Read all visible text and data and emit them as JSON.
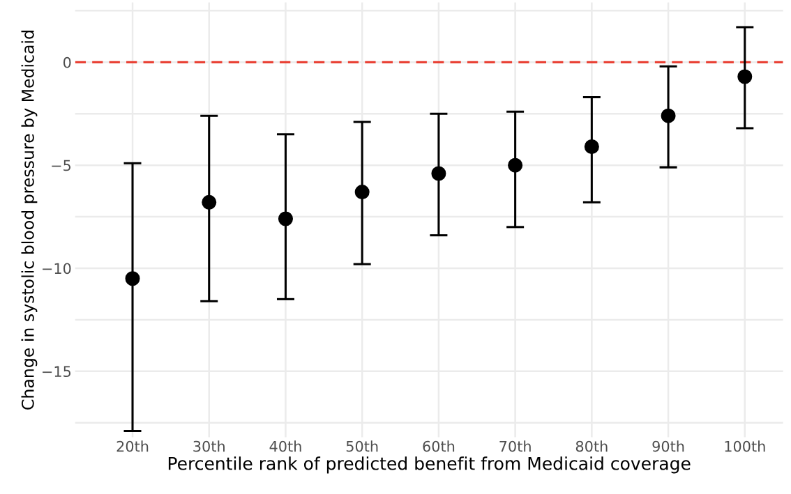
{
  "chart_data": {
    "type": "scatter",
    "xlabel": "Percentile rank of predicted benefit from Medicaid coverage",
    "ylabel": "Change in systolic blood pressure by Medicaid",
    "categories": [
      "20th",
      "30th",
      "40th",
      "50th",
      "60th",
      "70th",
      "80th",
      "90th",
      "100th"
    ],
    "series": [
      {
        "color": "#000000",
        "values": [
          -10.5,
          -6.8,
          -7.6,
          -6.3,
          -5.4,
          -5.0,
          -4.1,
          -2.6,
          -0.7
        ],
        "errors": [
          [
            -17.9,
            -4.9
          ],
          [
            -11.6,
            -2.6
          ],
          [
            -11.5,
            -3.5
          ],
          [
            -9.8,
            -2.9
          ],
          [
            -8.4,
            -2.5
          ],
          [
            -8.0,
            -2.4
          ],
          [
            -6.8,
            -1.7
          ],
          [
            -5.1,
            -0.2
          ],
          [
            -3.2,
            1.7
          ]
        ]
      }
    ],
    "marker": "circle",
    "ylim": [
      -18.2,
      2.9
    ],
    "yticks": [
      {
        "value": -17.5,
        "label": null
      },
      -15,
      {
        "value": -12.5,
        "label": null
      },
      -10,
      {
        "value": -7.5,
        "label": null
      },
      -5,
      {
        "value": -2.5,
        "label": null
      },
      0,
      {
        "value": 2.5,
        "label": null
      }
    ],
    "ref_lines": [
      {
        "axis": "y",
        "value": 0,
        "color": "#e8382b",
        "line_style": "dashed"
      }
    ],
    "grid": true,
    "legend": false
  }
}
